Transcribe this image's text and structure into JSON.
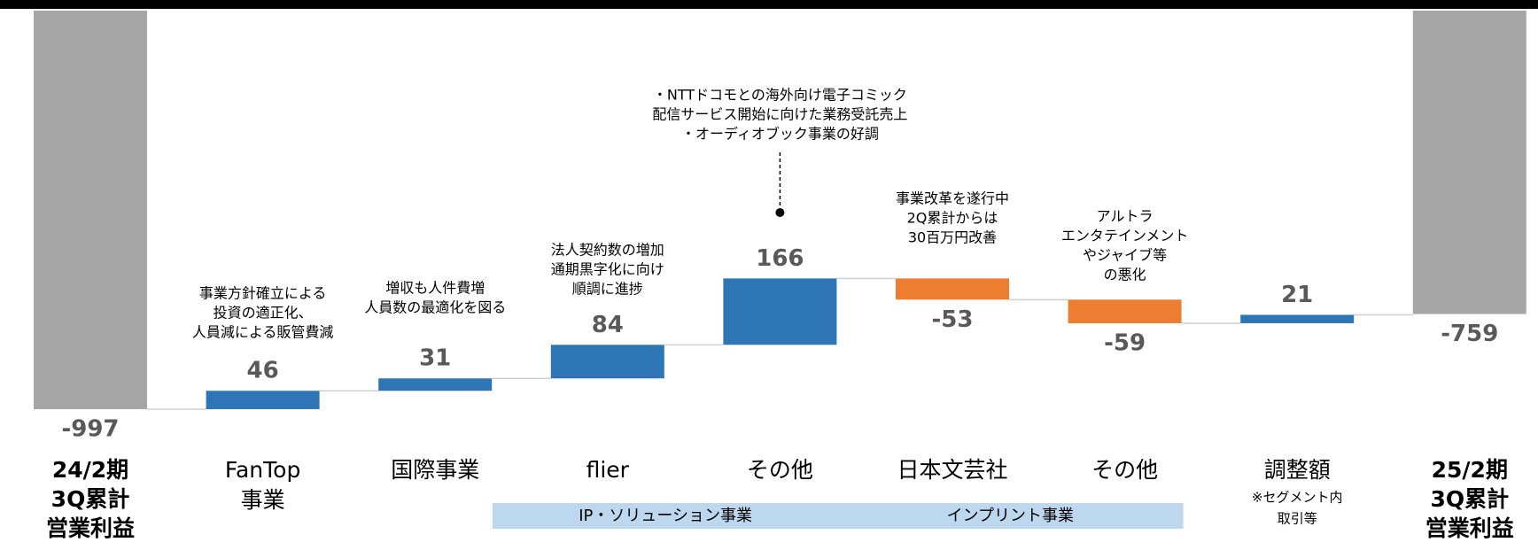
{
  "chart_data": {
    "type": "waterfall",
    "categories": [
      [
        "24/2期",
        "3Q累計",
        "営業利益"
      ],
      [
        "FanTop",
        "事業"
      ],
      [
        "国際事業"
      ],
      [
        "flier"
      ],
      [
        "その他"
      ],
      [
        "日本文芸社"
      ],
      [
        "その他"
      ],
      [
        "調整額"
      ],
      [
        "25/2期",
        "3Q累計",
        "営業利益"
      ]
    ],
    "values": [
      -997,
      46,
      31,
      84,
      166,
      -53,
      -59,
      21,
      -759
    ],
    "value_labels": [
      "-997",
      "46",
      "31",
      "84",
      "166",
      "-53",
      "-59",
      "21",
      "-759"
    ],
    "kinds": [
      "total",
      "step",
      "step",
      "step",
      "step",
      "step",
      "step",
      "step",
      "total"
    ],
    "colors": {
      "total": "#a6a6a6",
      "up": "#2e75b6",
      "down": "#ed7d31"
    },
    "annotations": [
      null,
      [
        "事業方針確立による",
        "投資の適正化、",
        "人員減による販管費減"
      ],
      [
        "増収も人件費増",
        "人員数の最適化を図る"
      ],
      [
        "法人契約数の増加",
        "通期黒字化に向け",
        "順調に進捗"
      ],
      [
        "・NTTドコモとの海外向け電子コミック",
        "配信サービス開始に向けた業務受託売上",
        "・オーディオブック事業の好調"
      ],
      [
        "事業改革を遂行中",
        "2Q累計からは",
        "30百万円改善"
      ],
      [
        "アルトラ",
        "エンタテインメント",
        "やジャイブ等",
        "の悪化"
      ],
      null,
      null
    ],
    "notes": [
      null,
      null,
      null,
      null,
      null,
      null,
      null,
      [
        "※セグメント内",
        "取引等"
      ],
      null
    ],
    "groups": [
      {
        "name": "IP・ソリューション事業",
        "categories": [
          3,
          4
        ]
      },
      {
        "name": "インプリント事業",
        "categories": [
          5,
          6
        ]
      }
    ]
  }
}
